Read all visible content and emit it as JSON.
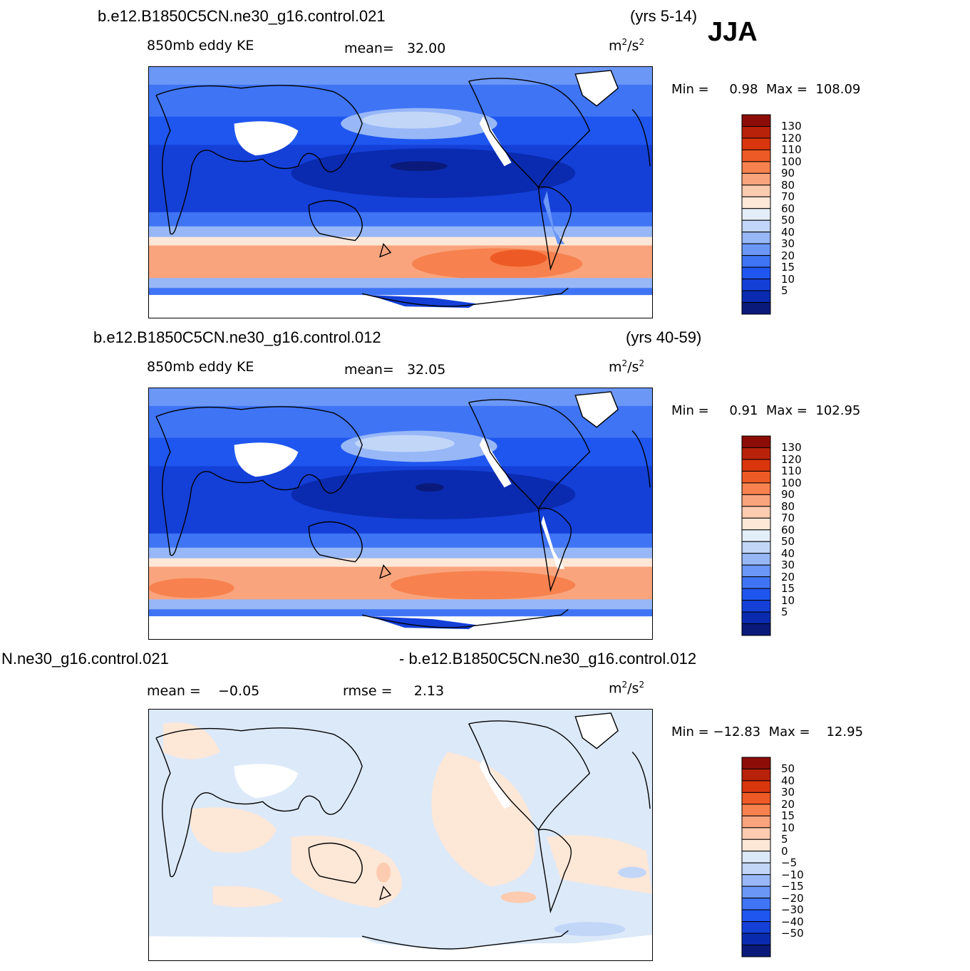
{
  "header": {
    "season": "JJA"
  },
  "panels": [
    {
      "case": "b.e12.B1850C5CN.ne30_g16.control.021",
      "years": "(yrs 5-14)",
      "variable": "850mb eddy KE",
      "stat_label": "mean=",
      "stat_value": "32.00",
      "units_base": "m",
      "units_exp1": "2",
      "units_mid": "/s",
      "units_exp2": "2",
      "min_label": "Min =",
      "min_value": "0.98",
      "max_label": "Max =",
      "max_value": "108.09"
    },
    {
      "case": "b.e12.B1850C5CN.ne30_g16.control.012",
      "years": "(yrs 40-59)",
      "variable": "850mb eddy KE",
      "stat_label": "mean=",
      "stat_value": "32.05",
      "units_base": "m",
      "units_exp1": "2",
      "units_mid": "/s",
      "units_exp2": "2",
      "min_label": "Min =",
      "min_value": "0.91",
      "max_label": "Max =",
      "max_value": "102.95"
    },
    {
      "case_left": "N.ne30_g16.control.021",
      "case_right": "- b.e12.B1850C5CN.ne30_g16.control.012",
      "mean_label": "mean =",
      "mean_value": "−0.05",
      "rmse_label": "rmse =",
      "rmse_value": "2.13",
      "units_base": "m",
      "units_exp1": "2",
      "units_mid": "/s",
      "units_exp2": "2",
      "min_label": "Min =",
      "min_value": "−12.83",
      "max_label": "Max =",
      "max_value": "12.95"
    }
  ],
  "colors": {
    "abs_scale": [
      "#0a1a7a",
      "#0a2bb0",
      "#1440d8",
      "#1e56ef",
      "#3f74f5",
      "#6b97f7",
      "#97b7f7",
      "#c2d6f8",
      "#e4eef9",
      "#fde7d7",
      "#fccbb0",
      "#f9a47d",
      "#f7824f",
      "#ee5a25",
      "#d9360e",
      "#b8210a",
      "#8c0d08"
    ],
    "diff_scale": [
      "#0a1a7a",
      "#0a2bb0",
      "#1440d8",
      "#1e56ef",
      "#3f74f5",
      "#6b97f7",
      "#97b7f7",
      "#c2d6f8",
      "#dce9f9",
      "#fde7d7",
      "#fccbb0",
      "#f9a47d",
      "#f7824f",
      "#ee5a25",
      "#d9360e",
      "#b8210a",
      "#8c0d08"
    ]
  },
  "chart_data": [
    {
      "type": "heatmap",
      "title": "b.e12.B1850C5CN.ne30_g16.control.021 (yrs 5-14)",
      "variable": "850mb eddy KE",
      "units": "m2/s2",
      "mean": 32.0,
      "min": 0.98,
      "max": 108.09,
      "colorbar_levels": [
        5,
        10,
        15,
        20,
        30,
        40,
        50,
        60,
        70,
        80,
        90,
        100,
        110,
        120,
        130
      ],
      "colorbar_labels": [
        "130",
        "120",
        "110",
        "100",
        "90",
        "80",
        "70",
        "60",
        "50",
        "40",
        "30",
        "20",
        "15",
        "10",
        "5"
      ],
      "map": "global cylindrical equidistant, centered on Pacific"
    },
    {
      "type": "heatmap",
      "title": "b.e12.B1850C5CN.ne30_g16.control.012 (yrs 40-59)",
      "variable": "850mb eddy KE",
      "units": "m2/s2",
      "mean": 32.05,
      "min": 0.91,
      "max": 102.95,
      "colorbar_levels": [
        5,
        10,
        15,
        20,
        30,
        40,
        50,
        60,
        70,
        80,
        90,
        100,
        110,
        120,
        130
      ],
      "colorbar_labels": [
        "130",
        "120",
        "110",
        "100",
        "90",
        "80",
        "70",
        "60",
        "50",
        "40",
        "30",
        "20",
        "15",
        "10",
        "5"
      ],
      "map": "global cylindrical equidistant, centered on Pacific"
    },
    {
      "type": "heatmap",
      "title": "N.ne30_g16.control.021 - b.e12.B1850C5CN.ne30_g16.control.012",
      "units": "m2/s2",
      "mean": -0.05,
      "rmse": 2.13,
      "min": -12.83,
      "max": 12.95,
      "colorbar_levels": [
        -50,
        -40,
        -30,
        -20,
        -15,
        -10,
        -5,
        0,
        5,
        10,
        15,
        20,
        30,
        40,
        50
      ],
      "colorbar_labels": [
        "50",
        "40",
        "30",
        "20",
        "15",
        "10",
        "5",
        "0",
        "−5",
        "−10",
        "−15",
        "−20",
        "−30",
        "−40",
        "−50"
      ],
      "map": "global cylindrical equidistant, centered on Pacific"
    }
  ]
}
